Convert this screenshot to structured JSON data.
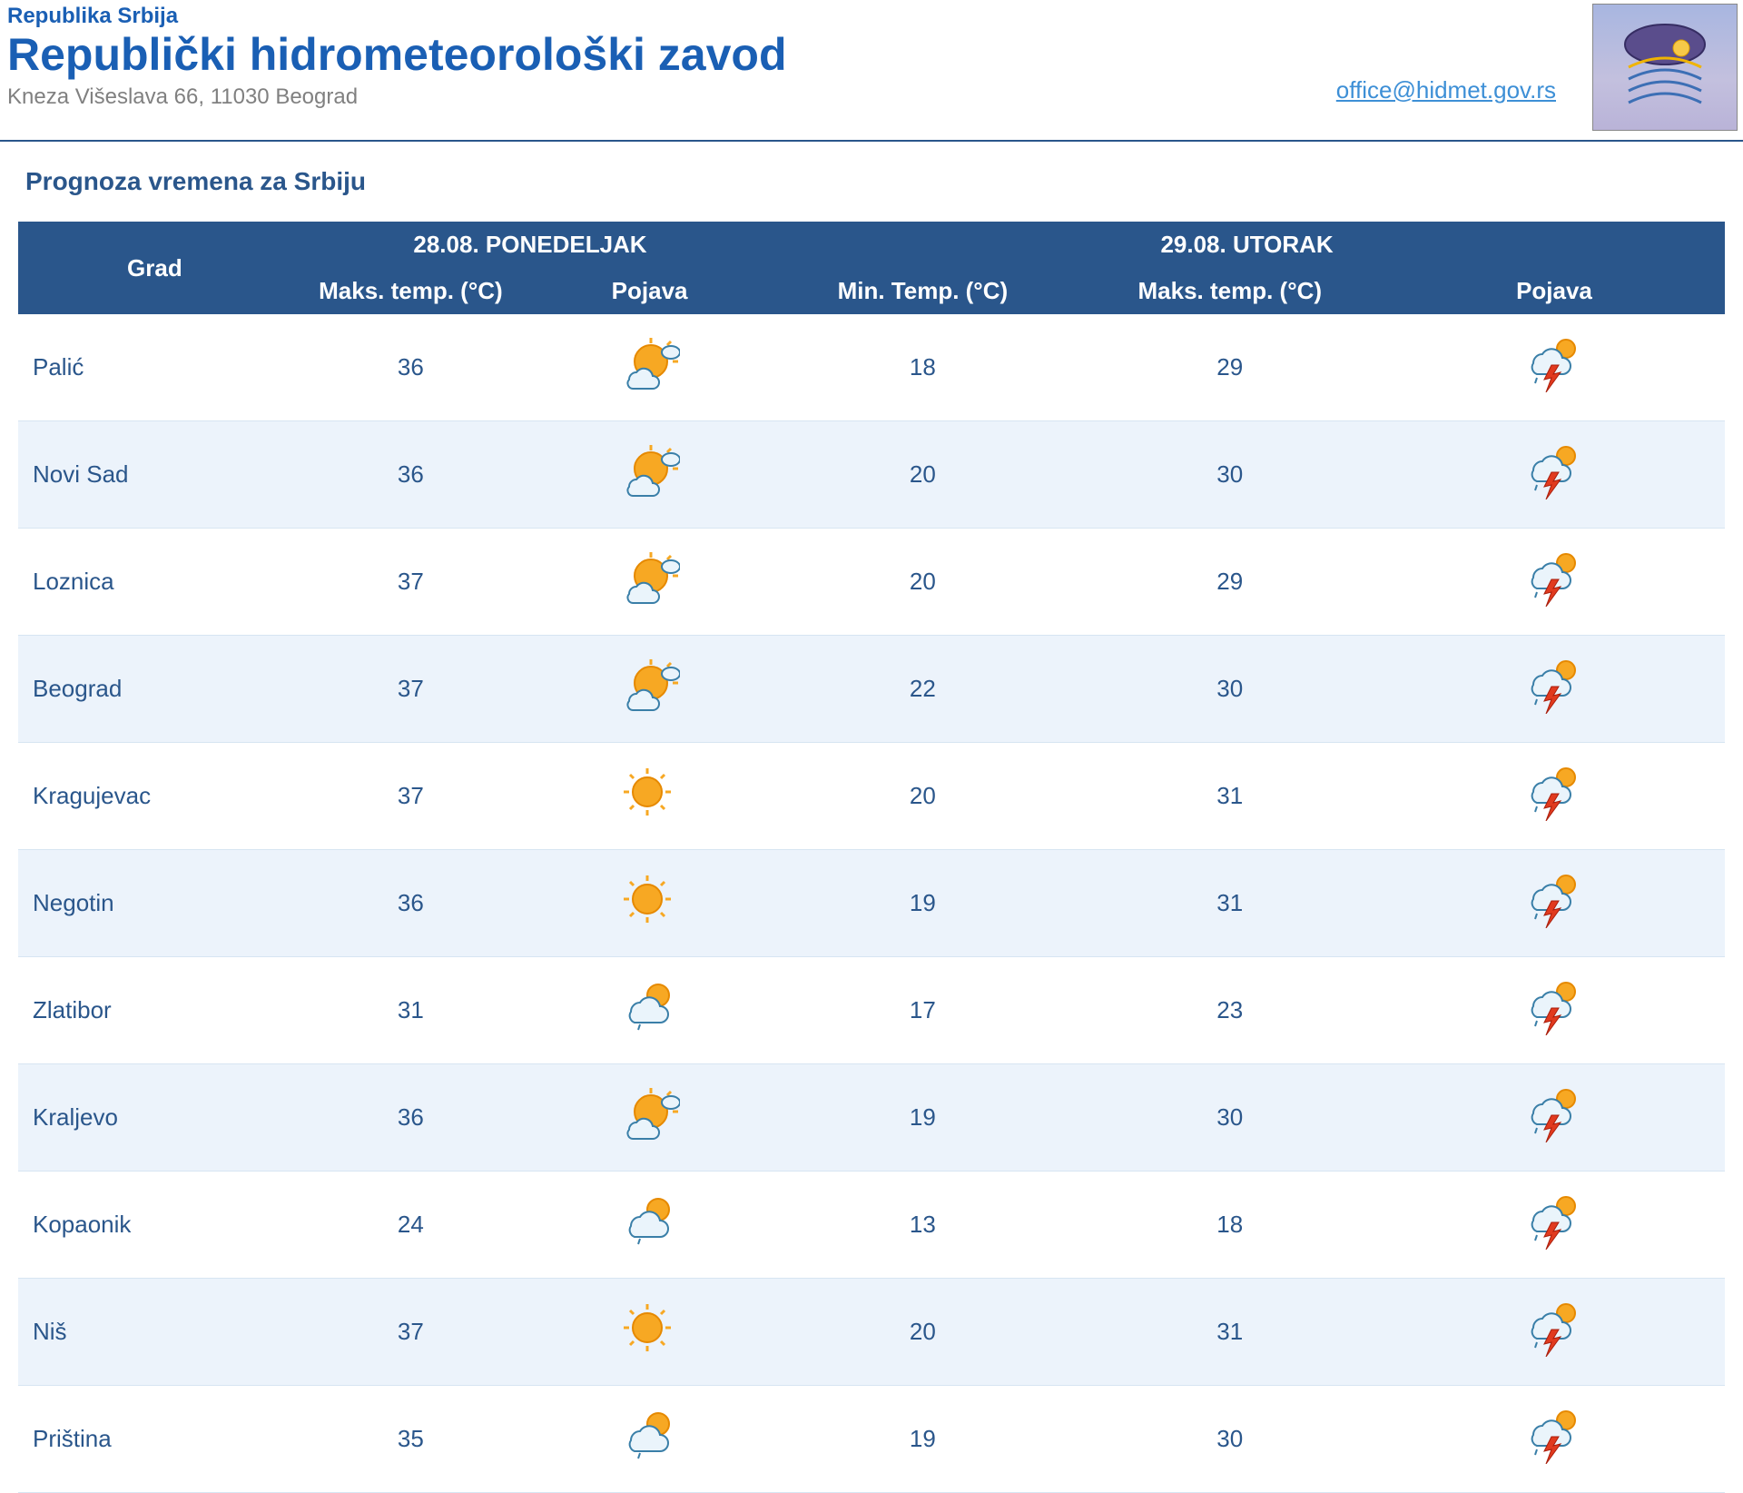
{
  "header": {
    "country": "Republika Srbija",
    "title": "Republički hidrometeorološki zavod",
    "address": "Kneza Višeslava 66, 11030 Beograd",
    "email": "office@hidmet.gov.rs"
  },
  "section_title": "Prognoza vremena za Srbiju",
  "colors": {
    "brand_blue": "#2a568b",
    "link_blue": "#3d8fd6",
    "row_alt_bg": "#ecf3fb",
    "row_bg": "#ffffff",
    "text_grey": "#808080"
  },
  "table": {
    "col_city": "Grad",
    "day1": {
      "date_label": "28.08. PONEDELJAK",
      "max_label": "Maks. temp. (°C)",
      "cond_label": "Pojava"
    },
    "day2": {
      "date_label": "29.08. UTORAK",
      "min_label": "Min. Temp. (°C)",
      "max_label": "Maks. temp. (°C)",
      "cond_label": "Pojava"
    },
    "rows": [
      {
        "city": "Palić",
        "d1max": "36",
        "d1icon": "mostly-sunny",
        "d2min": "18",
        "d2max": "29",
        "d2icon": "storm"
      },
      {
        "city": "Novi Sad",
        "d1max": "36",
        "d1icon": "mostly-sunny",
        "d2min": "20",
        "d2max": "30",
        "d2icon": "storm"
      },
      {
        "city": "Loznica",
        "d1max": "37",
        "d1icon": "mostly-sunny",
        "d2min": "20",
        "d2max": "29",
        "d2icon": "storm"
      },
      {
        "city": "Beograd",
        "d1max": "37",
        "d1icon": "mostly-sunny",
        "d2min": "22",
        "d2max": "30",
        "d2icon": "storm"
      },
      {
        "city": "Kragujevac",
        "d1max": "37",
        "d1icon": "sunny",
        "d2min": "20",
        "d2max": "31",
        "d2icon": "storm"
      },
      {
        "city": "Negotin",
        "d1max": "36",
        "d1icon": "sunny",
        "d2min": "19",
        "d2max": "31",
        "d2icon": "storm"
      },
      {
        "city": "Zlatibor",
        "d1max": "31",
        "d1icon": "partly-cloudy",
        "d2min": "17",
        "d2max": "23",
        "d2icon": "storm"
      },
      {
        "city": "Kraljevo",
        "d1max": "36",
        "d1icon": "mostly-sunny",
        "d2min": "19",
        "d2max": "30",
        "d2icon": "storm"
      },
      {
        "city": "Kopaonik",
        "d1max": "24",
        "d1icon": "partly-cloudy",
        "d2min": "13",
        "d2max": "18",
        "d2icon": "storm"
      },
      {
        "city": "Niš",
        "d1max": "37",
        "d1icon": "sunny",
        "d2min": "20",
        "d2max": "31",
        "d2icon": "storm"
      },
      {
        "city": "Priština",
        "d1max": "35",
        "d1icon": "partly-cloudy",
        "d2min": "19",
        "d2max": "30",
        "d2icon": "storm"
      }
    ]
  },
  "icon_styles": {
    "sun_fill": "#f7a823",
    "sun_stroke": "#e68900",
    "cloud_fill": "#eaf4fb",
    "cloud_stroke": "#3a7fa8",
    "bolt_fill": "#e13a1e"
  }
}
